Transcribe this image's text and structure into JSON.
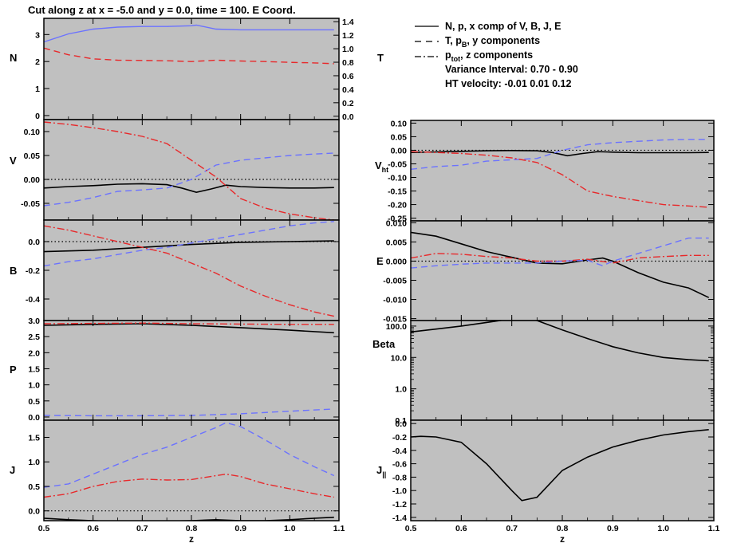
{
  "title": "Cut along z at x =  -5.0 and y =   0.0,  time = 100. E Coord.",
  "legend": {
    "line1": "N, p, x comp of V, B, J, E",
    "line2_prefix": "T, p",
    "line2_sub": "B",
    "line2_suffix": ", y components",
    "line3_prefix": "p",
    "line3_sub": "tot",
    "line3_suffix": ",  z components",
    "variance": "Variance Interval:  0.70 -   0.90",
    "ht_velocity": "HT velocity:  -0.01   0.01   0.12"
  },
  "colors": {
    "black": "#000000",
    "red": "#e8282a",
    "blue": "#6b72ff",
    "panel_bg": "#c0c0c0"
  },
  "xaxis": {
    "label": "z",
    "range": [
      0.5,
      1.1
    ],
    "ticks": [
      0.5,
      0.6,
      0.7,
      0.8,
      0.9,
      1.0,
      1.1
    ],
    "tick_labels": [
      "0.5",
      "0.6",
      "0.7",
      "0.8",
      "0.9",
      "1.0",
      "1.1"
    ]
  },
  "chart_data": [
    {
      "id": "N",
      "type": "line",
      "ylabel": "N",
      "ylim": [
        -0.15,
        3.6
      ],
      "yticks": [
        0,
        1,
        2,
        3
      ],
      "ytick_labels": [
        "0",
        "1",
        "2",
        "3"
      ],
      "right_axis": {
        "ylabel": "T",
        "ylim": [
          -0.05,
          1.45
        ],
        "ticks": [
          0.0,
          0.2,
          0.4,
          0.6,
          0.8,
          1.0,
          1.2,
          1.4
        ],
        "tick_labels": [
          "0.0",
          "0.2",
          "0.4",
          "0.6",
          "0.8",
          "1.0",
          "1.2",
          "1.4"
        ]
      },
      "series": [
        {
          "color": "blue",
          "style": "solid",
          "axis": "right",
          "x": [
            0.5,
            0.55,
            0.6,
            0.65,
            0.7,
            0.75,
            0.8,
            0.81,
            0.85,
            0.9,
            0.95,
            1.0,
            1.05,
            1.09
          ],
          "y": [
            1.1,
            1.22,
            1.29,
            1.32,
            1.33,
            1.33,
            1.34,
            1.35,
            1.29,
            1.28,
            1.28,
            1.28,
            1.28,
            1.28
          ]
        },
        {
          "color": "red",
          "style": "dash",
          "axis": "left",
          "x": [
            0.5,
            0.55,
            0.6,
            0.65,
            0.7,
            0.75,
            0.8,
            0.85,
            0.9,
            0.95,
            1.0,
            1.05,
            1.09
          ],
          "y": [
            2.5,
            2.25,
            2.1,
            2.05,
            2.04,
            2.03,
            2.0,
            2.05,
            2.02,
            2.0,
            1.97,
            1.95,
            1.92
          ]
        }
      ]
    },
    {
      "id": "V",
      "type": "line",
      "ylabel": "V",
      "ylim": [
        -0.085,
        0.125
      ],
      "yticks": [
        -0.05,
        0.0,
        0.05,
        0.1
      ],
      "ytick_labels": [
        "-0.05",
        "0.00",
        "0.05",
        "0.10"
      ],
      "zero_line": true,
      "series": [
        {
          "color": "black",
          "style": "solid",
          "x": [
            0.5,
            0.55,
            0.6,
            0.65,
            0.7,
            0.75,
            0.78,
            0.81,
            0.84,
            0.87,
            0.9,
            0.95,
            1.0,
            1.05,
            1.09
          ],
          "y": [
            -0.018,
            -0.015,
            -0.013,
            -0.01,
            -0.009,
            -0.011,
            -0.018,
            -0.027,
            -0.02,
            -0.012,
            -0.015,
            -0.017,
            -0.018,
            -0.018,
            -0.017
          ]
        },
        {
          "color": "blue",
          "style": "dash",
          "x": [
            0.5,
            0.55,
            0.6,
            0.65,
            0.7,
            0.75,
            0.8,
            0.85,
            0.9,
            0.95,
            1.0,
            1.05,
            1.09
          ],
          "y": [
            -0.055,
            -0.048,
            -0.038,
            -0.025,
            -0.022,
            -0.018,
            0.0,
            0.03,
            0.04,
            0.045,
            0.05,
            0.053,
            0.055
          ]
        },
        {
          "color": "red",
          "style": "dashdot",
          "x": [
            0.5,
            0.55,
            0.6,
            0.65,
            0.7,
            0.75,
            0.8,
            0.85,
            0.9,
            0.95,
            1.0,
            1.05,
            1.09
          ],
          "y": [
            0.12,
            0.115,
            0.108,
            0.1,
            0.09,
            0.075,
            0.04,
            0.005,
            -0.04,
            -0.06,
            -0.072,
            -0.08,
            -0.085
          ]
        }
      ]
    },
    {
      "id": "B",
      "type": "line",
      "ylabel": "B",
      "ylim": [
        -0.55,
        0.15
      ],
      "yticks": [
        -0.4,
        -0.2,
        0.0
      ],
      "ytick_labels": [
        "-0.4",
        "-0.2",
        "0.0"
      ],
      "zero_line": true,
      "series": [
        {
          "color": "black",
          "style": "solid",
          "x": [
            0.5,
            0.6,
            0.7,
            0.8,
            0.9,
            1.0,
            1.09
          ],
          "y": [
            -0.07,
            -0.06,
            -0.04,
            -0.02,
            -0.005,
            0.0,
            0.005
          ]
        },
        {
          "color": "blue",
          "style": "dash",
          "x": [
            0.5,
            0.55,
            0.6,
            0.65,
            0.7,
            0.75,
            0.8,
            0.85,
            0.9,
            0.95,
            1.0,
            1.05,
            1.09
          ],
          "y": [
            -0.17,
            -0.14,
            -0.12,
            -0.09,
            -0.06,
            -0.04,
            -0.01,
            0.02,
            0.05,
            0.08,
            0.11,
            0.13,
            0.14
          ]
        },
        {
          "color": "red",
          "style": "dashdot",
          "x": [
            0.5,
            0.55,
            0.6,
            0.65,
            0.7,
            0.75,
            0.8,
            0.85,
            0.9,
            0.95,
            1.0,
            1.05,
            1.09
          ],
          "y": [
            0.11,
            0.08,
            0.04,
            0.0,
            -0.04,
            -0.08,
            -0.15,
            -0.22,
            -0.31,
            -0.38,
            -0.44,
            -0.49,
            -0.52
          ]
        }
      ]
    },
    {
      "id": "P",
      "type": "line",
      "ylabel": "P",
      "ylim": [
        -0.1,
        3.0
      ],
      "yticks": [
        0.0,
        0.5,
        1.0,
        1.5,
        2.0,
        2.5,
        3.0
      ],
      "ytick_labels": [
        "0.0",
        "0.5",
        "1.0",
        "1.5",
        "2.0",
        "2.5",
        "3.0"
      ],
      "series": [
        {
          "color": "black",
          "style": "solid",
          "x": [
            0.5,
            0.6,
            0.7,
            0.8,
            0.9,
            1.0,
            1.09
          ],
          "y": [
            2.85,
            2.88,
            2.9,
            2.85,
            2.78,
            2.7,
            2.62
          ]
        },
        {
          "color": "red",
          "style": "dashdot",
          "x": [
            0.5,
            0.6,
            0.7,
            0.8,
            0.9,
            1.0,
            1.09
          ],
          "y": [
            2.9,
            2.91,
            2.92,
            2.9,
            2.89,
            2.88,
            2.88
          ]
        },
        {
          "color": "blue",
          "style": "dash",
          "x": [
            0.5,
            0.6,
            0.7,
            0.8,
            0.9,
            1.0,
            1.09
          ],
          "y": [
            0.05,
            0.04,
            0.04,
            0.05,
            0.1,
            0.18,
            0.25
          ]
        }
      ]
    },
    {
      "id": "J",
      "type": "line",
      "ylabel": "J",
      "ylim": [
        -0.2,
        1.85
      ],
      "yticks": [
        0.0,
        0.5,
        1.0,
        1.5
      ],
      "ytick_labels": [
        "0.0",
        "0.5",
        "1.0",
        "1.5"
      ],
      "zero_line": true,
      "series": [
        {
          "color": "black",
          "style": "solid",
          "x": [
            0.5,
            0.55,
            0.6,
            0.65,
            0.7,
            0.75,
            0.8,
            0.85,
            0.9,
            0.95,
            1.0,
            1.05,
            1.09
          ],
          "y": [
            -0.15,
            -0.18,
            -0.2,
            -0.22,
            -0.22,
            -0.21,
            -0.2,
            -0.18,
            -0.2,
            -0.2,
            -0.18,
            -0.15,
            -0.13
          ]
        },
        {
          "color": "red",
          "style": "dashdot",
          "x": [
            0.5,
            0.55,
            0.6,
            0.65,
            0.7,
            0.75,
            0.8,
            0.85,
            0.87,
            0.9,
            0.95,
            1.0,
            1.05,
            1.09
          ],
          "y": [
            0.28,
            0.35,
            0.5,
            0.6,
            0.65,
            0.63,
            0.64,
            0.72,
            0.75,
            0.7,
            0.55,
            0.45,
            0.35,
            0.28
          ]
        },
        {
          "color": "blue",
          "style": "dash",
          "x": [
            0.5,
            0.55,
            0.6,
            0.65,
            0.7,
            0.75,
            0.8,
            0.85,
            0.87,
            0.9,
            0.95,
            1.0,
            1.05,
            1.09
          ],
          "y": [
            0.48,
            0.55,
            0.75,
            0.95,
            1.15,
            1.3,
            1.5,
            1.7,
            1.8,
            1.72,
            1.45,
            1.15,
            0.9,
            0.72
          ]
        }
      ]
    },
    {
      "id": "Vht",
      "type": "line",
      "ylabel": "V",
      "ylabel_sub": "ht",
      "ylim": [
        -0.26,
        0.11
      ],
      "yticks": [
        -0.25,
        -0.2,
        -0.15,
        -0.1,
        -0.05,
        0.0,
        0.05,
        0.1
      ],
      "ytick_labels": [
        "-0.25",
        "-0.20",
        "-0.15",
        "-0.10",
        "-0.05",
        "0.00",
        "0.05",
        "0.10"
      ],
      "zero_line": true,
      "series": [
        {
          "color": "black",
          "style": "solid",
          "x": [
            0.5,
            0.55,
            0.6,
            0.65,
            0.7,
            0.75,
            0.78,
            0.81,
            0.84,
            0.87,
            0.9,
            0.95,
            1.0,
            1.05,
            1.09
          ],
          "y": [
            -0.008,
            -0.006,
            -0.004,
            -0.002,
            -0.001,
            -0.002,
            -0.008,
            -0.02,
            -0.012,
            -0.005,
            -0.007,
            -0.009,
            -0.009,
            -0.009,
            -0.008
          ]
        },
        {
          "color": "blue",
          "style": "dash",
          "x": [
            0.5,
            0.55,
            0.6,
            0.65,
            0.7,
            0.75,
            0.8,
            0.85,
            0.9,
            0.95,
            1.0,
            1.05,
            1.09
          ],
          "y": [
            -0.07,
            -0.06,
            -0.055,
            -0.04,
            -0.035,
            -0.03,
            0.0,
            0.02,
            0.028,
            0.033,
            0.038,
            0.04,
            0.04
          ]
        },
        {
          "color": "red",
          "style": "dashdot",
          "x": [
            0.5,
            0.55,
            0.6,
            0.65,
            0.7,
            0.75,
            0.8,
            0.85,
            0.9,
            0.95,
            1.0,
            1.05,
            1.09
          ],
          "y": [
            -0.005,
            -0.008,
            -0.012,
            -0.018,
            -0.028,
            -0.045,
            -0.09,
            -0.15,
            -0.17,
            -0.185,
            -0.2,
            -0.205,
            -0.21
          ]
        }
      ]
    },
    {
      "id": "E",
      "type": "line",
      "ylabel": "E",
      "ylim": [
        -0.0155,
        0.0105
      ],
      "yticks": [
        -0.015,
        -0.01,
        -0.005,
        0.0,
        0.005,
        0.01
      ],
      "ytick_labels": [
        "-0.015",
        "-0.010",
        "-0.005",
        "0.000",
        "0.005",
        "0.010"
      ],
      "zero_line": true,
      "series": [
        {
          "color": "black",
          "style": "solid",
          "x": [
            0.5,
            0.55,
            0.6,
            0.65,
            0.7,
            0.75,
            0.8,
            0.85,
            0.88,
            0.9,
            0.95,
            1.0,
            1.05,
            1.09
          ],
          "y": [
            0.0075,
            0.0065,
            0.0045,
            0.0025,
            0.001,
            -0.0005,
            -0.0007,
            0.0003,
            0.0008,
            0.0,
            -0.003,
            -0.0055,
            -0.007,
            -0.0095
          ]
        },
        {
          "color": "red",
          "style": "dashdot",
          "x": [
            0.5,
            0.55,
            0.6,
            0.65,
            0.7,
            0.75,
            0.8,
            0.85,
            0.9,
            0.95,
            1.0,
            1.05,
            1.09
          ],
          "y": [
            0.0008,
            0.002,
            0.0018,
            0.0012,
            0.0008,
            0.0,
            0.0,
            0.0005,
            -0.0005,
            0.0008,
            0.0012,
            0.0015,
            0.0015
          ]
        },
        {
          "color": "blue",
          "style": "dash",
          "x": [
            0.5,
            0.55,
            0.6,
            0.65,
            0.7,
            0.75,
            0.8,
            0.85,
            0.88,
            0.9,
            0.95,
            1.0,
            1.05,
            1.09
          ],
          "y": [
            -0.0018,
            -0.0012,
            -0.0008,
            -0.0005,
            -0.0005,
            -0.0005,
            0.0,
            0.0002,
            -0.0012,
            0.0,
            0.002,
            0.004,
            0.006,
            0.006
          ]
        }
      ]
    },
    {
      "id": "Beta",
      "type": "line",
      "ylabel": "Beta",
      "yscale": "log",
      "ylim": [
        0.1,
        150
      ],
      "yticks": [
        0.1,
        1,
        10,
        100
      ],
      "ytick_labels": [
        "0.1",
        "1.0",
        "10.0",
        "100.0"
      ],
      "series": [
        {
          "color": "black",
          "style": "solid",
          "x": [
            0.5,
            0.55,
            0.6,
            0.65,
            0.7,
            0.72,
            0.75,
            0.8,
            0.85,
            0.9,
            0.95,
            1.0,
            1.05,
            1.09
          ],
          "y": [
            65,
            80,
            100,
            130,
            170,
            180,
            150,
            75,
            40,
            22,
            14,
            10,
            8.5,
            7.8
          ]
        }
      ]
    },
    {
      "id": "Jpar",
      "type": "line",
      "ylabel": "J",
      "ylabel_sub": "||",
      "ylim": [
        -1.45,
        0.05
      ],
      "yticks": [
        -1.4,
        -1.2,
        -1.0,
        -0.8,
        -0.6,
        -0.4,
        -0.2,
        0.0
      ],
      "ytick_labels": [
        "-1.4",
        "-1.2",
        "-1.0",
        "-0.8",
        "-0.6",
        "-0.4",
        "-0.2",
        "0.0"
      ],
      "series": [
        {
          "color": "black",
          "style": "solid",
          "x": [
            0.5,
            0.52,
            0.55,
            0.6,
            0.65,
            0.7,
            0.72,
            0.75,
            0.8,
            0.85,
            0.9,
            0.95,
            1.0,
            1.05,
            1.09
          ],
          "y": [
            -0.2,
            -0.19,
            -0.2,
            -0.28,
            -0.6,
            -1.0,
            -1.15,
            -1.1,
            -0.7,
            -0.5,
            -0.35,
            -0.25,
            -0.17,
            -0.12,
            -0.09
          ]
        }
      ]
    }
  ]
}
